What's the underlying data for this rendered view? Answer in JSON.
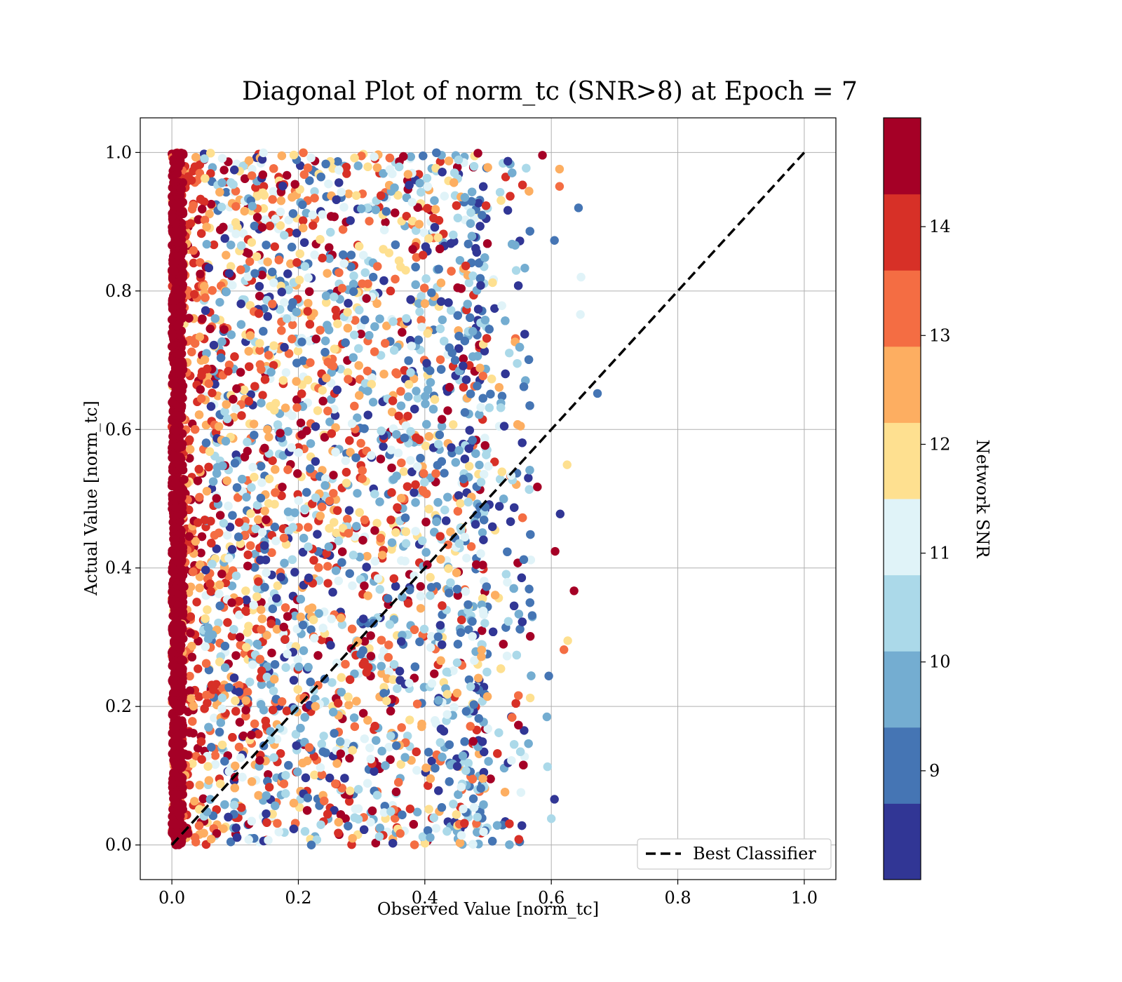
{
  "chart_data": {
    "type": "scatter",
    "title": "Diagonal Plot of norm_tc (SNR>8) at Epoch = 7",
    "xlabel": "Observed Value [norm_tc]",
    "ylabel": "Actual Value [norm_tc]",
    "xlim": [
      -0.05,
      1.05
    ],
    "ylim": [
      -0.05,
      1.05
    ],
    "xticks": [
      "0.0",
      "0.2",
      "0.4",
      "0.6",
      "0.8",
      "1.0"
    ],
    "yticks": [
      "0.0",
      "0.2",
      "0.4",
      "0.6",
      "0.8",
      "1.0"
    ],
    "grid": true,
    "legend": {
      "placement": "lower-right",
      "entries": [
        "Best Classifier"
      ]
    },
    "reference_line": {
      "name": "Best Classifier",
      "style": "dashed",
      "color": "#000000",
      "x": [
        0.0,
        1.0
      ],
      "y": [
        0.0,
        1.0
      ]
    },
    "point_summary": {
      "description_x_range": [
        0.0,
        0.67
      ],
      "y_range": [
        0.0,
        1.0
      ],
      "dense_column_at_x": 0.0
    },
    "outlier_points": [
      {
        "x": 0.643,
        "y": 0.92,
        "snr": 8.8
      },
      {
        "x": 0.673,
        "y": 0.652,
        "snr": 8.8
      },
      {
        "x": 0.605,
        "y": 0.873,
        "snr": 9.2
      },
      {
        "x": 0.614,
        "y": 0.478,
        "snr": 8.3
      },
      {
        "x": 0.636,
        "y": 0.367,
        "snr": 14.8
      },
      {
        "x": 0.606,
        "y": 0.424,
        "snr": 14.8
      },
      {
        "x": 0.62,
        "y": 0.282,
        "snr": 13.6
      },
      {
        "x": 0.626,
        "y": 0.295,
        "snr": 11.9
      },
      {
        "x": 0.625,
        "y": 0.549,
        "snr": 12.2
      },
      {
        "x": 0.605,
        "y": 0.066,
        "snr": 8.5
      },
      {
        "x": 0.6,
        "y": 0.038,
        "snr": 10.4
      },
      {
        "x": 0.586,
        "y": 0.996,
        "snr": 14.8
      },
      {
        "x": 0.613,
        "y": 0.976,
        "snr": 12.6
      },
      {
        "x": 0.613,
        "y": 0.951,
        "snr": 13.4
      },
      {
        "x": 0.647,
        "y": 0.82,
        "snr": 11.0
      },
      {
        "x": 0.646,
        "y": 0.766,
        "snr": 11.0
      },
      {
        "x": 0.578,
        "y": 0.517,
        "snr": 14.8
      },
      {
        "x": 0.596,
        "y": 0.244,
        "snr": 9.2
      },
      {
        "x": 0.593,
        "y": 0.185,
        "snr": 10.0
      },
      {
        "x": 0.594,
        "y": 0.113,
        "snr": 10.2
      }
    ],
    "colorbar": {
      "label": "Network SNR",
      "ticks": [
        "9",
        "10",
        "11",
        "12",
        "13",
        "14"
      ],
      "range": [
        8.0,
        15.0
      ],
      "colors": [
        "#313695",
        "#4575b4",
        "#74add1",
        "#abd9e9",
        "#e0f3f8",
        "#fee090",
        "#fdae61",
        "#f46d43",
        "#d73027",
        "#a50026"
      ]
    }
  }
}
